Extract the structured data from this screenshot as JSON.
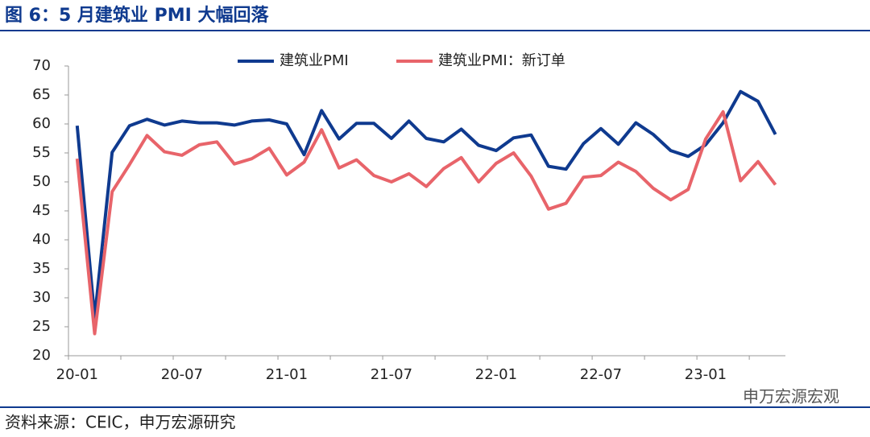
{
  "chart_data": {
    "type": "line",
    "title": "图 6：5 月建筑业 PMI 大幅回落",
    "source": "资料来源：CEIC，申万宏源研究",
    "watermark": "申万宏源宏观",
    "categories": [
      "20-01",
      null,
      null,
      null,
      null,
      null,
      "20-07",
      null,
      null,
      null,
      null,
      null,
      "21-01",
      null,
      null,
      null,
      null,
      null,
      "21-07",
      null,
      null,
      null,
      null,
      null,
      "22-01",
      null,
      null,
      null,
      null,
      null,
      "22-07",
      null,
      null,
      null,
      null,
      null,
      "23-01",
      null,
      null,
      null,
      null
    ],
    "series": [
      {
        "name": "建筑业PMI",
        "color": "#0f3a8f",
        "values": [
          59.7,
          26.6,
          55.1,
          59.7,
          60.8,
          59.8,
          60.5,
          60.2,
          60.2,
          59.8,
          60.5,
          60.7,
          60.0,
          54.7,
          62.3,
          57.4,
          60.1,
          60.1,
          57.5,
          60.5,
          57.5,
          56.9,
          59.1,
          56.3,
          55.4,
          57.6,
          58.1,
          52.7,
          52.2,
          56.6,
          59.2,
          56.5,
          60.2,
          58.2,
          55.4,
          54.4,
          56.4,
          60.2,
          65.6,
          63.9,
          58.2
        ]
      },
      {
        "name": "建筑业PMI：新订单",
        "color": "#e8646a",
        "values": [
          54.0,
          23.8,
          48.3,
          53.0,
          58.0,
          55.2,
          54.6,
          56.4,
          56.9,
          53.1,
          54.0,
          55.8,
          51.2,
          53.4,
          59.0,
          52.4,
          53.8,
          51.1,
          50.0,
          51.4,
          49.2,
          52.3,
          54.2,
          50.0,
          53.2,
          55.0,
          51.0,
          45.3,
          46.3,
          50.8,
          51.1,
          53.4,
          51.8,
          48.9,
          46.9,
          48.7,
          57.4,
          62.1,
          50.2,
          53.5,
          49.5
        ]
      }
    ],
    "ylim": [
      20,
      70
    ],
    "yticks": [
      20,
      25,
      30,
      35,
      40,
      45,
      50,
      55,
      60,
      65,
      70
    ],
    "grid": false
  }
}
